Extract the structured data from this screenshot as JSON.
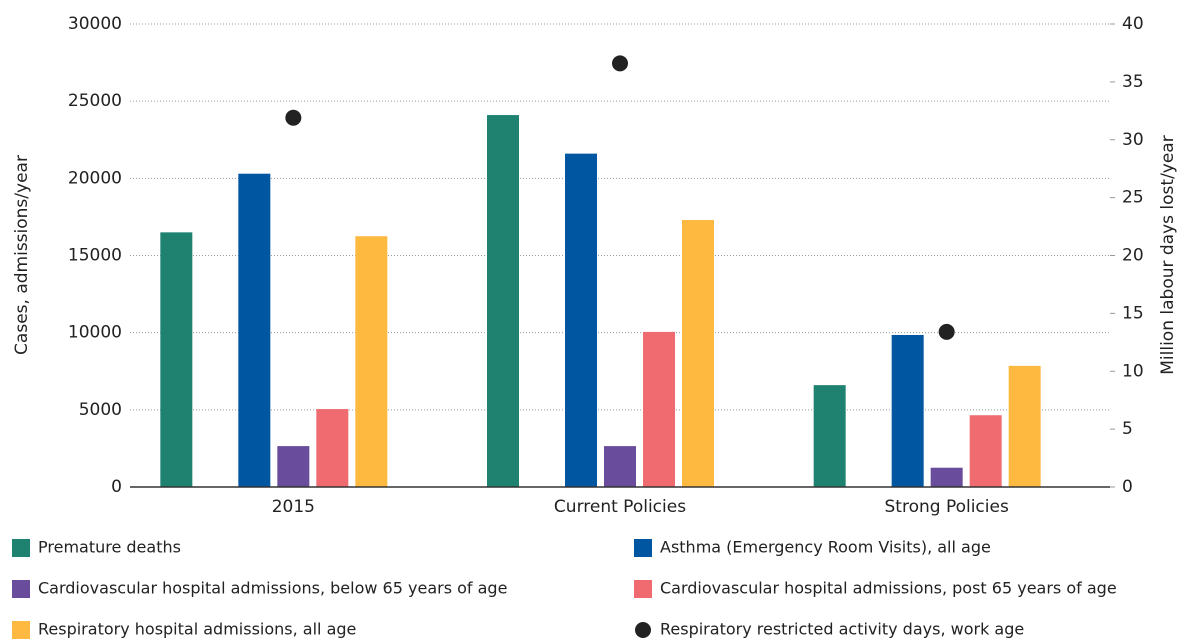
{
  "chart_data": {
    "type": "bar",
    "categories": [
      "2015",
      "Current Policies",
      "Strong Policies"
    ],
    "ylabel": "Cases, admissions/year",
    "y2label": "Million labour days lost/year",
    "ylim": [
      0,
      30000
    ],
    "yticks": [
      0,
      5000,
      10000,
      15000,
      20000,
      25000,
      30000
    ],
    "y2lim": [
      0,
      40
    ],
    "y2ticks": [
      0,
      5,
      10,
      15,
      20,
      25,
      30,
      35,
      40
    ],
    "grid": true,
    "legend": "bottom",
    "series": [
      {
        "name": "Premature deaths",
        "color": "#1f8270",
        "values": [
          16500,
          24100,
          6600
        ]
      },
      {
        "name": "Asthma (Emergency Room Visits), all age",
        "color": "#0056a0",
        "values": [
          20300,
          21600,
          9850
        ]
      },
      {
        "name": "Cardiovascular hospital admissions, below 65 years of age",
        "color": "#6a4c9c",
        "values": [
          2650,
          2650,
          1250
        ]
      },
      {
        "name": "Cardiovascular hospital admissions, post 65 years of age",
        "color": "#ef6b6f",
        "values": [
          5050,
          10050,
          4650
        ]
      },
      {
        "name": "Respiratory hospital admissions, all age",
        "color": "#fdb940",
        "values": [
          16250,
          17300,
          7850
        ]
      },
      {
        "name": "Respiratory restricted activity days, work age",
        "color": "#222222",
        "type": "scatter",
        "axis": "y2",
        "values": [
          31.9,
          36.6,
          13.4
        ]
      }
    ]
  }
}
